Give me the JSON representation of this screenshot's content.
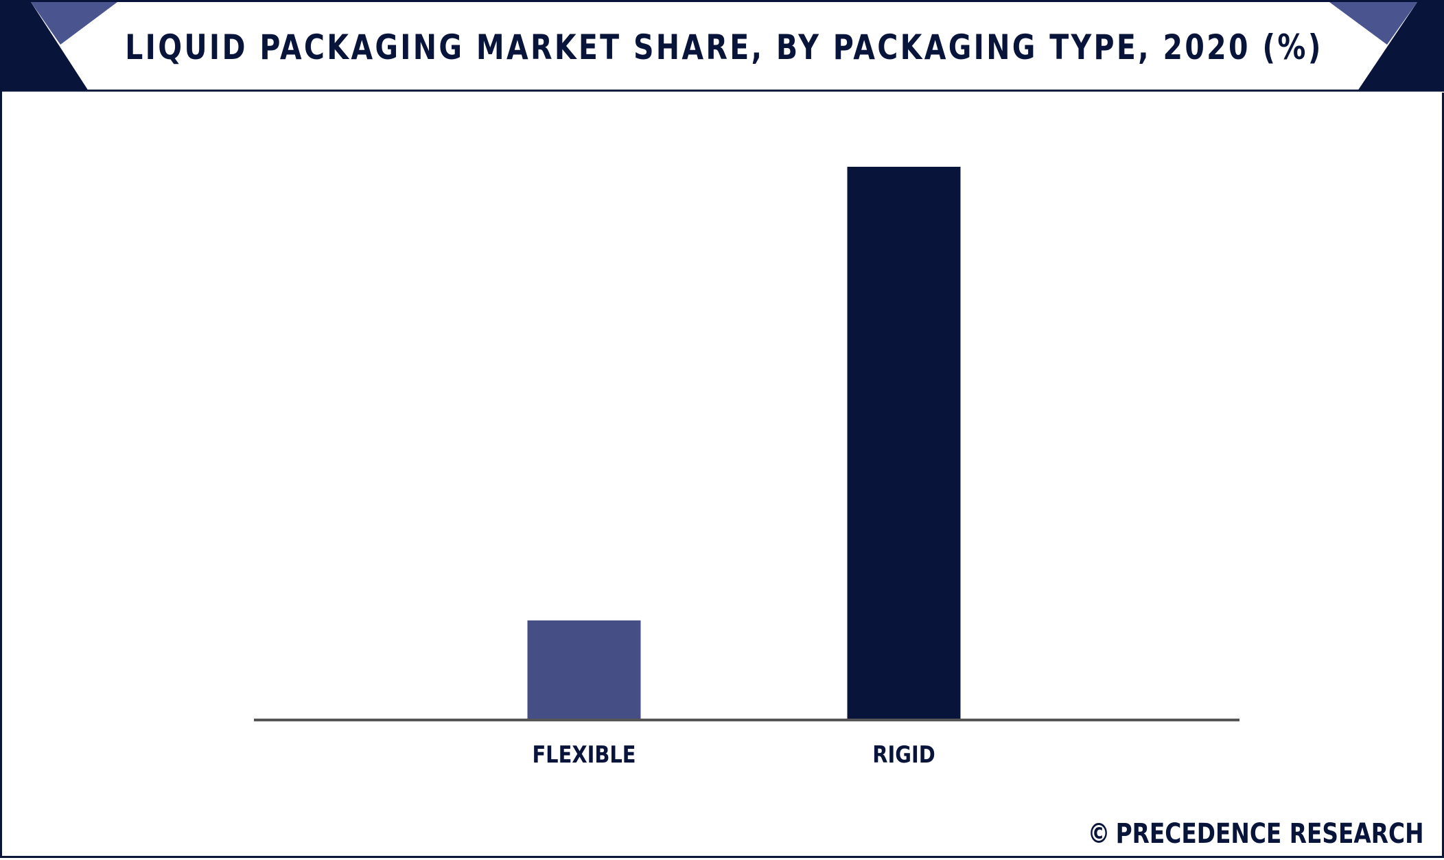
{
  "header": {
    "title": "LIQUID PACKAGING MARKET SHARE, BY PACKAGING TYPE, 2020 (%)"
  },
  "footer": {
    "copyright_symbol": "©",
    "brand": "PRECEDENCE RESEARCH"
  },
  "colors": {
    "navy": "#08143a",
    "slate_blue": "#454f86",
    "accent": "#4a5590"
  },
  "chart_data": {
    "type": "bar",
    "title": "LIQUID PACKAGING MARKET SHARE, BY PACKAGING TYPE, 2020 (%)",
    "categories": [
      "FLEXIBLE",
      "RIGID"
    ],
    "values": [
      18,
      100
    ],
    "colors": [
      "#454f86",
      "#08143a"
    ],
    "xlabel": "",
    "ylabel": "",
    "ylim": [
      0,
      100
    ],
    "grid": false,
    "legend": "none"
  }
}
